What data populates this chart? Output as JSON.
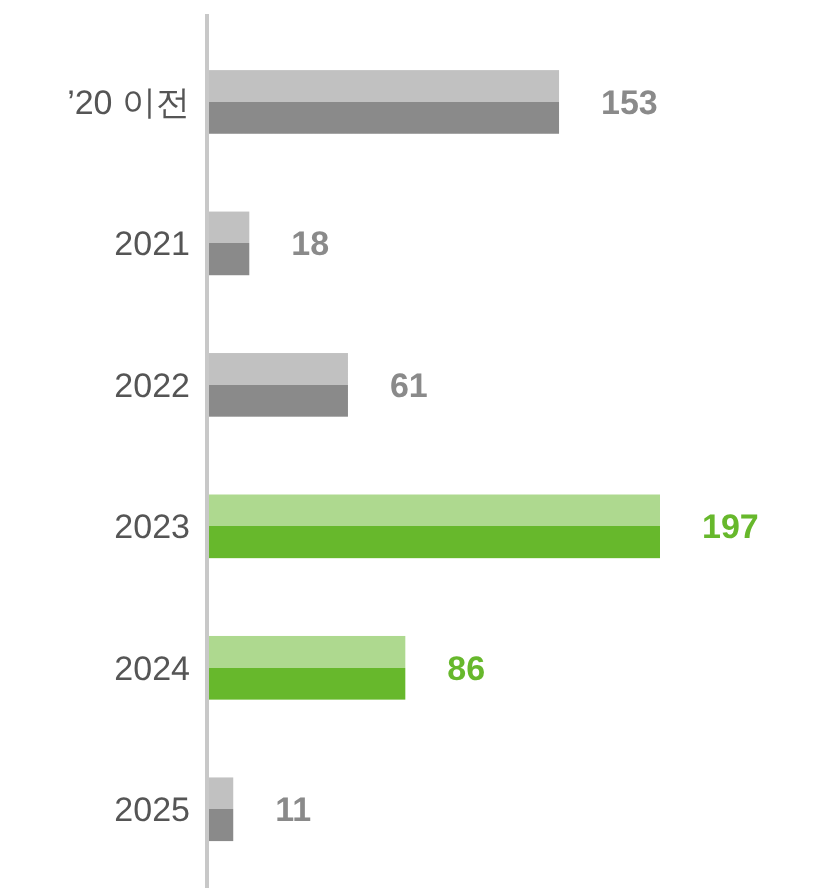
{
  "chart_data": {
    "type": "bar",
    "orientation": "horizontal",
    "categories": [
      "’20 이전",
      "2021",
      "2022",
      "2023",
      "2024",
      "2025"
    ],
    "values": [
      153,
      18,
      61,
      197,
      86,
      11
    ],
    "colors": [
      "#8a8a8a",
      "#8a8a8a",
      "#8a8a8a",
      "#67b82c",
      "#67b82c",
      "#8a8a8a"
    ],
    "data_labels": true
  }
}
